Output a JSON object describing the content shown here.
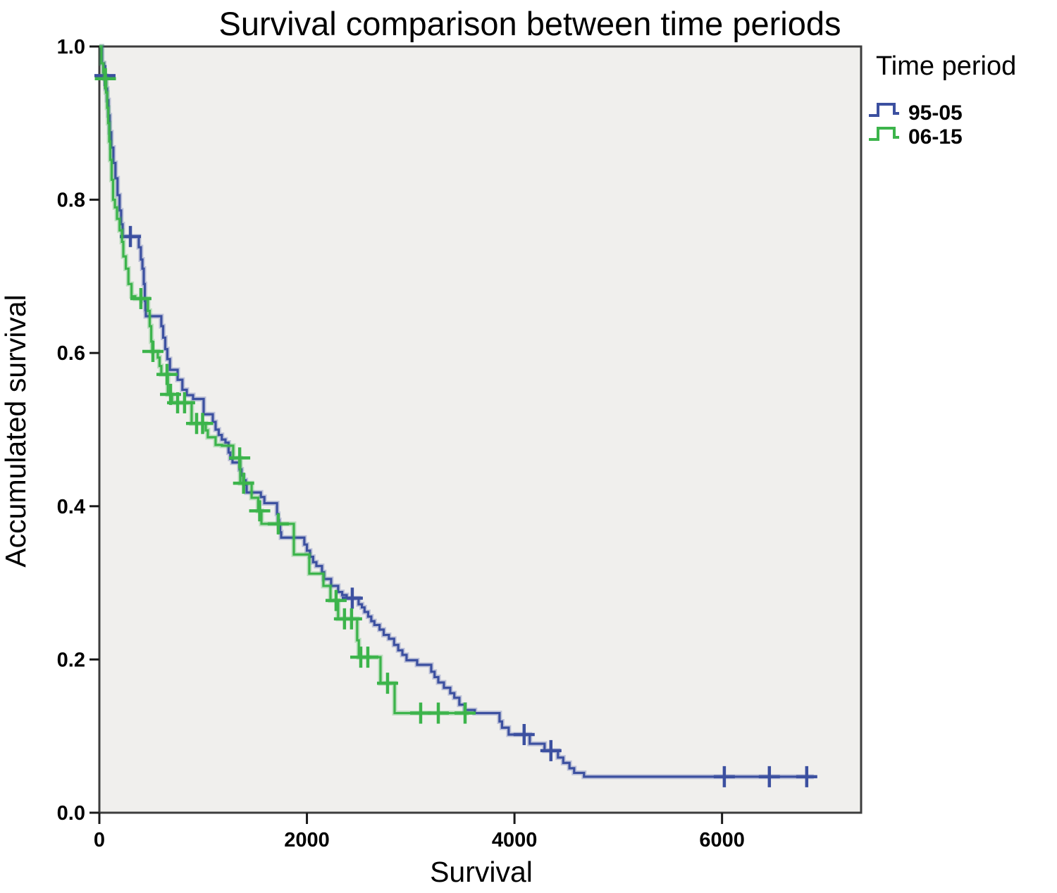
{
  "chart_data": {
    "type": "line",
    "subtype": "kaplan-meier-step",
    "title": "Survival comparison between time periods",
    "xlabel": "Survival",
    "ylabel": "Accumulated survival",
    "legend_title": "Time period",
    "legend_position": "top-right-outside",
    "grid": false,
    "plot_background": "#f0efed",
    "border_color": "#3d3d3d",
    "tick_color": "#1a1a1a",
    "xlim": [
      0,
      7340
    ],
    "ylim": [
      0.0,
      1.0
    ],
    "x_ticks": [
      0,
      2000,
      4000,
      6000
    ],
    "y_ticks": [
      1.0,
      0.8,
      0.6,
      0.4,
      0.2,
      0.0
    ],
    "series": [
      {
        "name": "95-05",
        "color": "#3c50a0",
        "start": [
          0,
          1.0
        ],
        "end_x": 6884,
        "drops": [
          [
            25,
            0.978
          ],
          [
            45,
            0.962
          ],
          [
            62,
            0.945
          ],
          [
            75,
            0.93
          ],
          [
            88,
            0.91
          ],
          [
            100,
            0.888
          ],
          [
            115,
            0.868
          ],
          [
            135,
            0.848
          ],
          [
            155,
            0.828
          ],
          [
            175,
            0.806
          ],
          [
            195,
            0.786
          ],
          [
            210,
            0.768
          ],
          [
            224,
            0.752
          ],
          [
            380,
            0.738
          ],
          [
            400,
            0.722
          ],
          [
            415,
            0.71
          ],
          [
            428,
            0.69
          ],
          [
            438,
            0.668
          ],
          [
            444,
            0.656
          ],
          [
            448,
            0.648
          ],
          [
            597,
            0.635
          ],
          [
            615,
            0.62
          ],
          [
            635,
            0.605
          ],
          [
            655,
            0.592
          ],
          [
            680,
            0.578
          ],
          [
            754,
            0.565
          ],
          [
            800,
            0.552
          ],
          [
            842,
            0.545
          ],
          [
            903,
            0.54
          ],
          [
            1005,
            0.52
          ],
          [
            1093,
            0.51
          ],
          [
            1120,
            0.5
          ],
          [
            1150,
            0.493
          ],
          [
            1180,
            0.487
          ],
          [
            1215,
            0.483
          ],
          [
            1245,
            0.47
          ],
          [
            1262,
            0.462
          ],
          [
            1283,
            0.457
          ],
          [
            1351,
            0.448
          ],
          [
            1370,
            0.44
          ],
          [
            1390,
            0.434
          ],
          [
            1410,
            0.428
          ],
          [
            1419,
            0.418
          ],
          [
            1556,
            0.412
          ],
          [
            1590,
            0.404
          ],
          [
            1712,
            0.39
          ],
          [
            1722,
            0.382
          ],
          [
            1732,
            0.374
          ],
          [
            1742,
            0.366
          ],
          [
            1752,
            0.359
          ],
          [
            1975,
            0.35
          ],
          [
            2000,
            0.342
          ],
          [
            2030,
            0.334
          ],
          [
            2060,
            0.327
          ],
          [
            2091,
            0.322
          ],
          [
            2145,
            0.314
          ],
          [
            2165,
            0.305
          ],
          [
            2233,
            0.296
          ],
          [
            2301,
            0.288
          ],
          [
            2340,
            0.284
          ],
          [
            2383,
            0.28
          ],
          [
            2498,
            0.272
          ],
          [
            2530,
            0.268
          ],
          [
            2555,
            0.262
          ],
          [
            2590,
            0.256
          ],
          [
            2620,
            0.25
          ],
          [
            2650,
            0.245
          ],
          [
            2700,
            0.239
          ],
          [
            2740,
            0.232
          ],
          [
            2790,
            0.227
          ],
          [
            2840,
            0.219
          ],
          [
            2880,
            0.212
          ],
          [
            2920,
            0.206
          ],
          [
            2960,
            0.199
          ],
          [
            3062,
            0.193
          ],
          [
            3198,
            0.184
          ],
          [
            3230,
            0.177
          ],
          [
            3266,
            0.17
          ],
          [
            3320,
            0.163
          ],
          [
            3381,
            0.156
          ],
          [
            3420,
            0.15
          ],
          [
            3469,
            0.141
          ],
          [
            3520,
            0.134
          ],
          [
            3618,
            0.13
          ],
          [
            3856,
            0.119
          ],
          [
            3880,
            0.111
          ],
          [
            3944,
            0.102
          ],
          [
            4147,
            0.09
          ],
          [
            4290,
            0.081
          ],
          [
            4419,
            0.072
          ],
          [
            4470,
            0.065
          ],
          [
            4530,
            0.058
          ],
          [
            4575,
            0.052
          ],
          [
            4670,
            0.047
          ]
        ],
        "censors": [
          [
            54,
            0.962
          ],
          [
            299,
            0.752
          ],
          [
            2437,
            0.28
          ],
          [
            4093,
            0.102
          ],
          [
            4351,
            0.081
          ],
          [
            6022,
            0.047
          ],
          [
            6456,
            0.047
          ],
          [
            6816,
            0.047
          ]
        ]
      },
      {
        "name": "06-15",
        "color": "#3cb44b",
        "start": [
          0,
          1.0
        ],
        "end_x": 3560,
        "drops": [
          [
            20,
            0.978
          ],
          [
            38,
            0.966
          ],
          [
            50,
            0.958
          ],
          [
            65,
            0.94
          ],
          [
            75,
            0.92
          ],
          [
            85,
            0.9
          ],
          [
            95,
            0.876
          ],
          [
            105,
            0.852
          ],
          [
            118,
            0.826
          ],
          [
            132,
            0.8
          ],
          [
            150,
            0.79
          ],
          [
            170,
            0.775
          ],
          [
            195,
            0.76
          ],
          [
            218,
            0.745
          ],
          [
            231,
            0.726
          ],
          [
            255,
            0.71
          ],
          [
            280,
            0.69
          ],
          [
            310,
            0.674
          ],
          [
            346,
            0.671
          ],
          [
            468,
            0.655
          ],
          [
            485,
            0.635
          ],
          [
            500,
            0.615
          ],
          [
            510,
            0.602
          ],
          [
            563,
            0.594
          ],
          [
            580,
            0.583
          ],
          [
            597,
            0.572
          ],
          [
            660,
            0.546
          ],
          [
            700,
            0.535
          ],
          [
            889,
            0.508
          ],
          [
            1025,
            0.499
          ],
          [
            1045,
            0.49
          ],
          [
            1120,
            0.48
          ],
          [
            1181,
            0.479
          ],
          [
            1290,
            0.463
          ],
          [
            1358,
            0.43
          ],
          [
            1467,
            0.411
          ],
          [
            1530,
            0.394
          ],
          [
            1562,
            0.377
          ],
          [
            1874,
            0.337
          ],
          [
            2023,
            0.312
          ],
          [
            2159,
            0.296
          ],
          [
            2227,
            0.277
          ],
          [
            2301,
            0.253
          ],
          [
            2484,
            0.225
          ],
          [
            2500,
            0.203
          ],
          [
            2709,
            0.169
          ],
          [
            2845,
            0.13
          ]
        ],
        "censors": [
          [
            58,
            0.958
          ],
          [
            400,
            0.671
          ],
          [
            516,
            0.602
          ],
          [
            652,
            0.572
          ],
          [
            686,
            0.546
          ],
          [
            754,
            0.535
          ],
          [
            821,
            0.535
          ],
          [
            937,
            0.508
          ],
          [
            995,
            0.508
          ],
          [
            1352,
            0.463
          ],
          [
            1390,
            0.43
          ],
          [
            1545,
            0.394
          ],
          [
            1724,
            0.377
          ],
          [
            2281,
            0.277
          ],
          [
            2362,
            0.253
          ],
          [
            2430,
            0.253
          ],
          [
            2519,
            0.203
          ],
          [
            2587,
            0.203
          ],
          [
            2777,
            0.169
          ],
          [
            3096,
            0.13
          ],
          [
            3266,
            0.13
          ],
          [
            3524,
            0.13
          ]
        ]
      }
    ]
  }
}
